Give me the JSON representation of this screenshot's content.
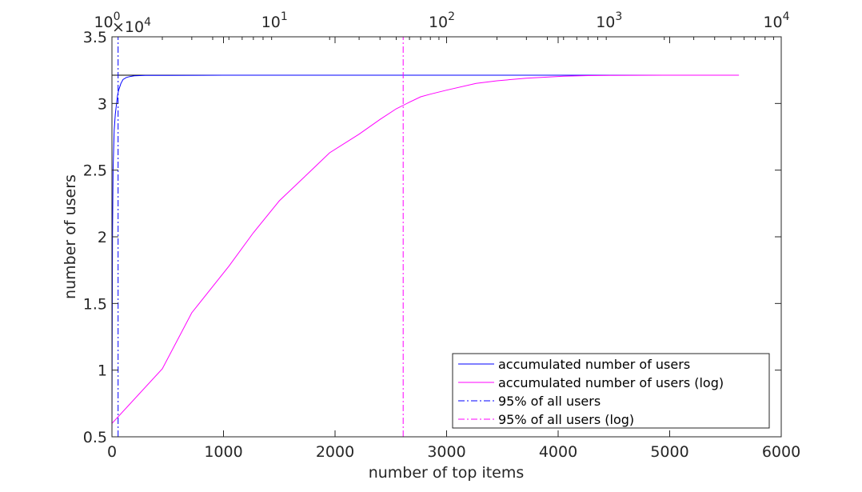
{
  "chart_data": {
    "type": "line",
    "xlabel": "number of top items",
    "ylabel": "number of users",
    "y_exponent_label": "×10",
    "y_exponent_power": "4",
    "xlim": [
      0,
      6000
    ],
    "ylim": [
      0.5,
      3.5
    ],
    "y_scale": 10000,
    "x_ticks": [
      "0",
      "1000",
      "2000",
      "3000",
      "4000",
      "5000",
      "6000"
    ],
    "y_ticks": [
      "0.5",
      "1",
      "1.5",
      "2",
      "2.5",
      "3",
      "3.5"
    ],
    "top_axis": {
      "scale": "log",
      "xlim": [
        1,
        10000
      ],
      "base": "10",
      "tick_powers": [
        "0",
        "1",
        "2",
        "3",
        "4"
      ]
    },
    "grid": false,
    "legend_position": "bottom-right",
    "colors": {
      "blue": "#0000ff",
      "magenta": "#ff00ff",
      "axis": "#262626"
    },
    "series": [
      {
        "name": "accumulated number of users",
        "axis": "bottom-linear",
        "style": "solid",
        "color": "#0000ff",
        "x": [
          0,
          5,
          10,
          20,
          30,
          40,
          50,
          60,
          80,
          100,
          130,
          160,
          200,
          300,
          500,
          1000,
          2000,
          3000,
          4000,
          5000,
          5590
        ],
        "y": [
          5000,
          20000,
          25000,
          28000,
          29200,
          29900,
          30600,
          31000,
          31500,
          31800,
          31950,
          32020,
          32070,
          32100,
          32110,
          32120,
          32120,
          32120,
          32120,
          32120,
          32120
        ]
      },
      {
        "name": "accumulated number of users (log)",
        "axis": "top-log",
        "style": "solid",
        "color": "#ff00ff",
        "x": [
          1,
          2,
          3,
          5,
          7,
          10,
          15,
          20,
          30,
          40,
          50,
          60,
          70,
          80,
          100,
          150,
          200,
          300,
          500,
          700,
          1000,
          2000,
          3000,
          5590
        ],
        "y": [
          6000,
          10100,
          14300,
          17800,
          20300,
          22700,
          24800,
          26300,
          27700,
          28800,
          29600,
          30100,
          30500,
          30700,
          31000,
          31500,
          31700,
          31900,
          32050,
          32090,
          32110,
          32120,
          32120,
          32120
        ]
      },
      {
        "name": "95% of all users",
        "axis": "bottom-linear",
        "style": "dash-dot",
        "color": "#0000ff",
        "x": [
          55,
          55
        ],
        "y": [
          5000,
          35000
        ]
      },
      {
        "name": "95% of all users (log)",
        "axis": "top-log",
        "style": "dash-dot",
        "color": "#ff00ff",
        "x": [
          55,
          55
        ],
        "y": [
          5000,
          35000
        ]
      }
    ],
    "reference_line": {
      "y": 32120,
      "x_range": [
        0,
        5590
      ],
      "color": "#000000"
    }
  }
}
